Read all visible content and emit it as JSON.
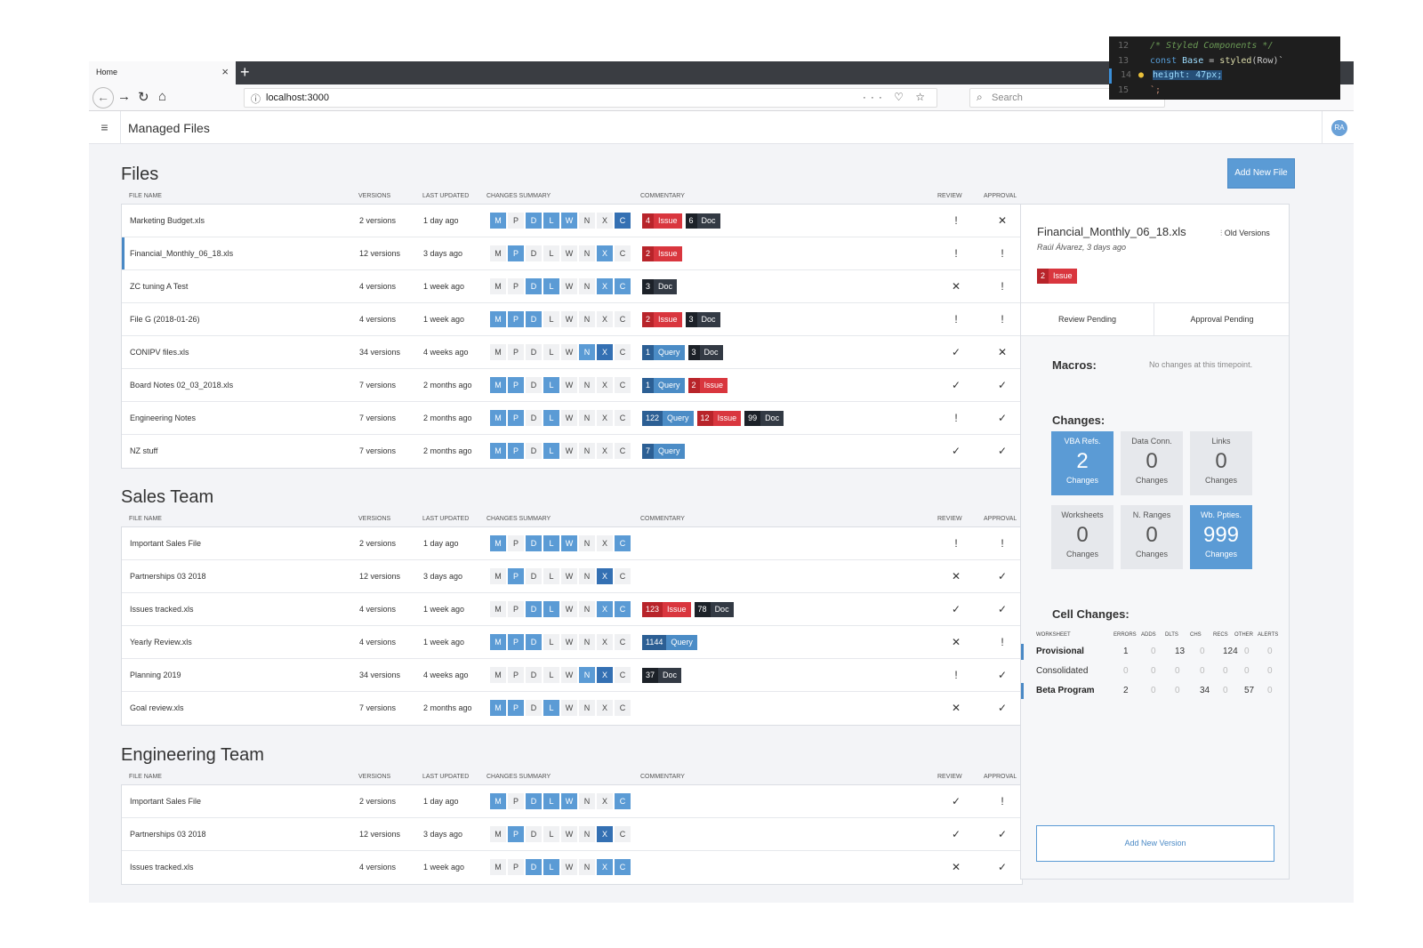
{
  "browser": {
    "tab_title": "Home",
    "tab_close": "×",
    "new_tab": "+",
    "url": "localhost:3000",
    "search_placeholder": "Search",
    "url_actions": "··· ♡ ☆"
  },
  "code_overlay": {
    "lines": [
      {
        "num": "12",
        "text": "/* Styled Components */"
      },
      {
        "num": "13",
        "text_kw": "const",
        "text_id": "Base",
        "text_eq": " = ",
        "text_fn": "styled",
        "text_arg": "(Row)`"
      },
      {
        "num": "14",
        "text": "height: 47px;"
      },
      {
        "num": "15",
        "text": "`;"
      }
    ]
  },
  "app": {
    "title": "Managed Files",
    "avatar": "RA",
    "add_file_button": "Add New File"
  },
  "headers": {
    "file_name": "FILE NAME",
    "versions": "VERSIONS",
    "last_updated": "LAST UPDATED",
    "changes_summary": "CHANGES SUMMARY",
    "commentary": "COMMENTARY",
    "review": "REVIEW",
    "approval": "APPROVAL"
  },
  "letters": [
    "M",
    "P",
    "D",
    "L",
    "W",
    "N",
    "X",
    "C"
  ],
  "sections": [
    {
      "title": "Files",
      "rows": [
        {
          "name": "Marketing Budget.xls",
          "versions": "2 versions",
          "updated": "1 day ago",
          "sum": "1011100d",
          "com": [
            {
              "n": "4",
              "t": "Issue",
              "k": "issue"
            },
            {
              "n": "6",
              "t": "Doc",
              "k": "doc"
            }
          ],
          "review": "!",
          "approval": "✕"
        },
        {
          "name": "Financial_Monthly_06_18.xls",
          "versions": "12 versions",
          "updated": "3 days ago",
          "sum": "01000010",
          "sel": true,
          "com": [
            {
              "n": "2",
              "t": "Issue",
              "k": "issue"
            }
          ],
          "review": "!",
          "approval": "!"
        },
        {
          "name": "ZC tuning A Test",
          "versions": "4 versions",
          "updated": "1 week ago",
          "sum": "00110011",
          "com": [
            {
              "n": "3",
              "t": "Doc",
              "k": "doc"
            }
          ],
          "review": "✕",
          "approval": "!"
        },
        {
          "name": "File G (2018-01-26)",
          "versions": "4 versions",
          "updated": "1 week ago",
          "sum": "11100000",
          "com": [
            {
              "n": "2",
              "t": "Issue",
              "k": "issue"
            },
            {
              "n": "3",
              "t": "Doc",
              "k": "doc"
            }
          ],
          "review": "!",
          "approval": "!"
        },
        {
          "name": "CONIPV files.xls",
          "versions": "34 versions",
          "updated": "4 weeks ago",
          "sum": "000001d0",
          "com": [
            {
              "n": "1",
              "t": "Query",
              "k": "query"
            },
            {
              "n": "3",
              "t": "Doc",
              "k": "doc"
            }
          ],
          "review": "✓",
          "approval": "✕"
        },
        {
          "name": "Board Notes 02_03_2018.xls",
          "versions": "7 versions",
          "updated": "2 months ago",
          "sum": "11010000",
          "com": [
            {
              "n": "1",
              "t": "Query",
              "k": "query"
            },
            {
              "n": "2",
              "t": "Issue",
              "k": "issue"
            }
          ],
          "review": "✓",
          "approval": "✓"
        },
        {
          "name": "Engineering Notes",
          "versions": "7 versions",
          "updated": "2 months ago",
          "sum": "11010000",
          "com": [
            {
              "n": "122",
              "t": "Query",
              "k": "query"
            },
            {
              "n": "12",
              "t": "Issue",
              "k": "issue"
            },
            {
              "n": "99",
              "t": "Doc",
              "k": "doc"
            }
          ],
          "review": "!",
          "approval": "✓"
        },
        {
          "name": "NZ stuff",
          "versions": "7 versions",
          "updated": "2 months ago",
          "sum": "11010000",
          "com": [
            {
              "n": "7",
              "t": "Query",
              "k": "query"
            }
          ],
          "review": "✓",
          "approval": "✓"
        }
      ]
    },
    {
      "title": "Sales Team",
      "rows": [
        {
          "name": "Important Sales File",
          "versions": "2 versions",
          "updated": "1 day ago",
          "sum": "10111001",
          "com": [],
          "review": "!",
          "approval": "!"
        },
        {
          "name": "Partnerships 03 2018",
          "versions": "12 versions",
          "updated": "3 days ago",
          "sum": "010000d0",
          "com": [],
          "review": "✕",
          "approval": "✓"
        },
        {
          "name": "Issues tracked.xls",
          "versions": "4 versions",
          "updated": "1 week ago",
          "sum": "00110011",
          "com": [
            {
              "n": "123",
              "t": "Issue",
              "k": "issue"
            },
            {
              "n": "78",
              "t": "Doc",
              "k": "doc"
            }
          ],
          "review": "✓",
          "approval": "✓"
        },
        {
          "name": "Yearly Review.xls",
          "versions": "4 versions",
          "updated": "1 week ago",
          "sum": "11100000",
          "com": [
            {
              "n": "1144",
              "t": "Query",
              "k": "query"
            }
          ],
          "review": "✕",
          "approval": "!"
        },
        {
          "name": "Planning 2019",
          "versions": "34 versions",
          "updated": "4 weeks ago",
          "sum": "000001d0",
          "com": [
            {
              "n": "37",
              "t": "Doc",
              "k": "doc"
            }
          ],
          "review": "!",
          "approval": "✓"
        },
        {
          "name": "Goal review.xls",
          "versions": "7 versions",
          "updated": "2 months ago",
          "sum": "11010000",
          "com": [],
          "review": "✕",
          "approval": "✓"
        }
      ]
    },
    {
      "title": "Engineering Team",
      "rows": [
        {
          "name": "Important Sales File",
          "versions": "2 versions",
          "updated": "1 day ago",
          "sum": "10111001",
          "com": [],
          "review": "✓",
          "approval": "!"
        },
        {
          "name": "Partnerships 03 2018",
          "versions": "12 versions",
          "updated": "3 days ago",
          "sum": "010000d0",
          "com": [],
          "review": "✓",
          "approval": "✓"
        },
        {
          "name": "Issues tracked.xls",
          "versions": "4 versions",
          "updated": "1 week ago",
          "sum": "00110011",
          "com": [],
          "review": "✕",
          "approval": "✓"
        }
      ]
    }
  ],
  "panel": {
    "file": "Financial_Monthly_06_18.xls",
    "subtitle": "Raúl Álvarez, 3 days ago",
    "old_versions": "Old Versions",
    "badge_n": "2",
    "badge_t": "Issue",
    "tab_review": "Review Pending",
    "tab_approval": "Approval Pending",
    "macros": "Macros:",
    "no_changes": "No changes at this timepoint.",
    "changes_title": "Changes:",
    "cards": [
      {
        "label": "VBA Refs.",
        "value": "2",
        "sub": "Changes",
        "on": true
      },
      {
        "label": "Data Conn.",
        "value": "0",
        "sub": "Changes",
        "on": false
      },
      {
        "label": "Links",
        "value": "0",
        "sub": "Changes",
        "on": false
      },
      {
        "label": "Worksheets",
        "value": "0",
        "sub": "Changes",
        "on": false
      },
      {
        "label": "N. Ranges",
        "value": "0",
        "sub": "Changes",
        "on": false
      },
      {
        "label": "Wb. Ppties.",
        "value": "999",
        "sub": "Changes",
        "on": true
      }
    ],
    "cell_title": "Cell Changes:",
    "cell_headers": [
      "WORKSHEET",
      "ERRORS",
      "ADDS",
      "DLTS",
      "CHS",
      "RECS",
      "OTHER",
      "ALERTS"
    ],
    "cell_rows": [
      {
        "name": "Provisional",
        "vals": [
          "1",
          "0",
          "13",
          "0",
          "124",
          "0",
          "0"
        ],
        "mark": true,
        "bold": true
      },
      {
        "name": "Consolidated",
        "vals": [
          "0",
          "0",
          "0",
          "0",
          "0",
          "0",
          "0"
        ],
        "mark": false,
        "bold": false
      },
      {
        "name": "Beta Program",
        "vals": [
          "2",
          "0",
          "0",
          "34",
          "0",
          "57",
          "0"
        ],
        "mark": true,
        "bold": true
      }
    ],
    "add_version": "Add New Version"
  },
  "colors": {
    "accent": "#5b9bd5",
    "issue": "#d9363e",
    "doc": "#333a44",
    "query": "#4b8cc6"
  }
}
